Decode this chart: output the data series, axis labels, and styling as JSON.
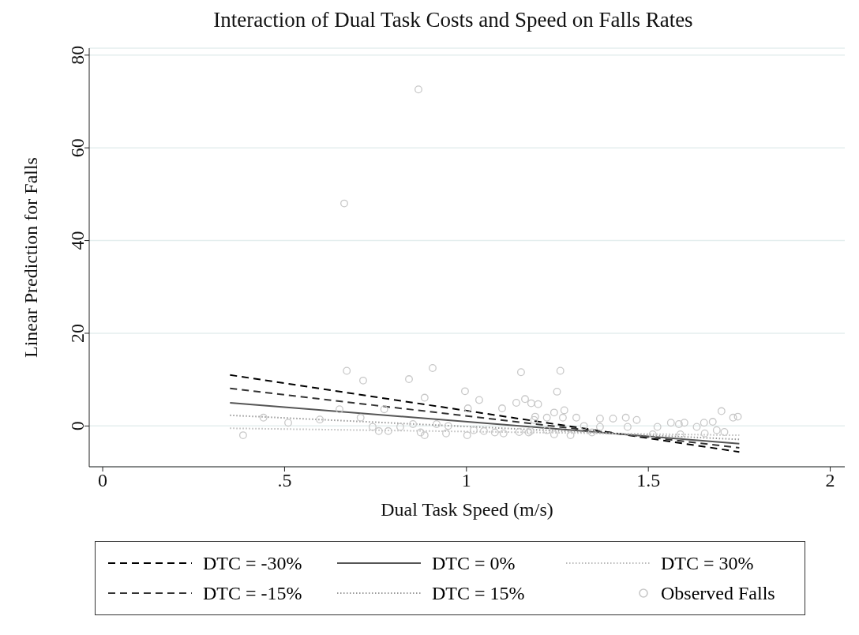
{
  "chart_data": {
    "type": "line",
    "title": "Interaction of Dual Task Costs and Speed on Falls Rates",
    "xlabel": "Dual Task Speed (m/s)",
    "ylabel": "Linear Prediction for Falls",
    "xlim": [
      -0.037,
      2.04
    ],
    "ylim": [
      -8.8,
      81.5
    ],
    "xticks": [
      0,
      {
        "value": 0.5,
        "label": ".5"
      },
      1,
      1.5,
      2
    ],
    "yticks": [
      0,
      20,
      40,
      60,
      80
    ],
    "grid": "y",
    "legend": "bottom",
    "series": [
      {
        "name": "DTC = -30%",
        "color": "#000000",
        "line_style": "dashed",
        "x": [
          0.35,
          1.75
        ],
        "values": [
          11.0,
          -5.6
        ]
      },
      {
        "name": "DTC = -15%",
        "color": "#333333",
        "line_style": "dashed",
        "x": [
          0.35,
          1.75
        ],
        "values": [
          8.1,
          -4.7
        ]
      },
      {
        "name": "DTC = 0%",
        "color": "#555555",
        "line_style": "solid",
        "x": [
          0.35,
          1.75
        ],
        "values": [
          5.0,
          -3.8
        ]
      },
      {
        "name": "DTC = 15%",
        "color": "#999999",
        "line_style": "dotted",
        "x": [
          0.35,
          1.75
        ],
        "values": [
          2.3,
          -2.9
        ]
      },
      {
        "name": "DTC = 30%",
        "color": "#bbbbbb",
        "line_style": "dotted",
        "x": [
          0.35,
          1.75
        ],
        "values": [
          -0.5,
          -2.0
        ]
      },
      {
        "name": "Observed Falls",
        "type": "scatter",
        "color": "#c8c8c8",
        "marker": "circle",
        "x": [
          0.868,
          0.664,
          0.671,
          0.716,
          0.907,
          0.842,
          1.15,
          0.996,
          0.885,
          1.035,
          1.161,
          1.137,
          1.098,
          1.004,
          0.774,
          0.651,
          0.442,
          0.51,
          0.597,
          0.709,
          0.386,
          0.742,
          0.759,
          0.785,
          0.818,
          0.853,
          0.874,
          0.885,
          0.918,
          0.944,
          0.95,
          1.002,
          1.02,
          1.048,
          1.078,
          1.102,
          1.145,
          1.176,
          1.186,
          1.258,
          1.249,
          1.178,
          1.197,
          1.269,
          1.241,
          1.302,
          1.189,
          1.221,
          1.265,
          1.323,
          1.367,
          1.403,
          1.438,
          1.468,
          1.443,
          1.367,
          1.286,
          1.345,
          1.525,
          1.512,
          1.562,
          1.584,
          1.599,
          1.588,
          1.633,
          1.653,
          1.677,
          1.688,
          1.709,
          1.655,
          1.701,
          1.733,
          1.746,
          1.221,
          1.241,
          1.171
        ],
        "values": [
          72.6,
          48.0,
          11.9,
          9.8,
          12.5,
          10.1,
          11.6,
          7.5,
          6.1,
          5.6,
          5.8,
          5.0,
          3.8,
          3.8,
          3.6,
          3.6,
          1.8,
          0.7,
          1.4,
          1.8,
          -2.0,
          -0.2,
          -1.1,
          -1.1,
          -0.2,
          0.4,
          -1.4,
          -2.0,
          0.4,
          -1.6,
          0.0,
          -2.0,
          -0.9,
          -1.1,
          -1.4,
          -1.6,
          -1.3,
          -1.1,
          1.3,
          11.9,
          7.4,
          4.9,
          4.7,
          3.4,
          2.9,
          1.8,
          2.0,
          1.8,
          1.8,
          0.0,
          1.6,
          1.6,
          1.8,
          1.3,
          -0.2,
          -0.2,
          -2.0,
          -1.4,
          -0.2,
          -1.8,
          0.7,
          0.4,
          0.7,
          -1.8,
          -0.2,
          0.7,
          0.9,
          -0.9,
          -1.3,
          -1.6,
          3.2,
          1.8,
          2.0,
          -0.9,
          -1.8,
          -1.4
        ]
      }
    ]
  }
}
